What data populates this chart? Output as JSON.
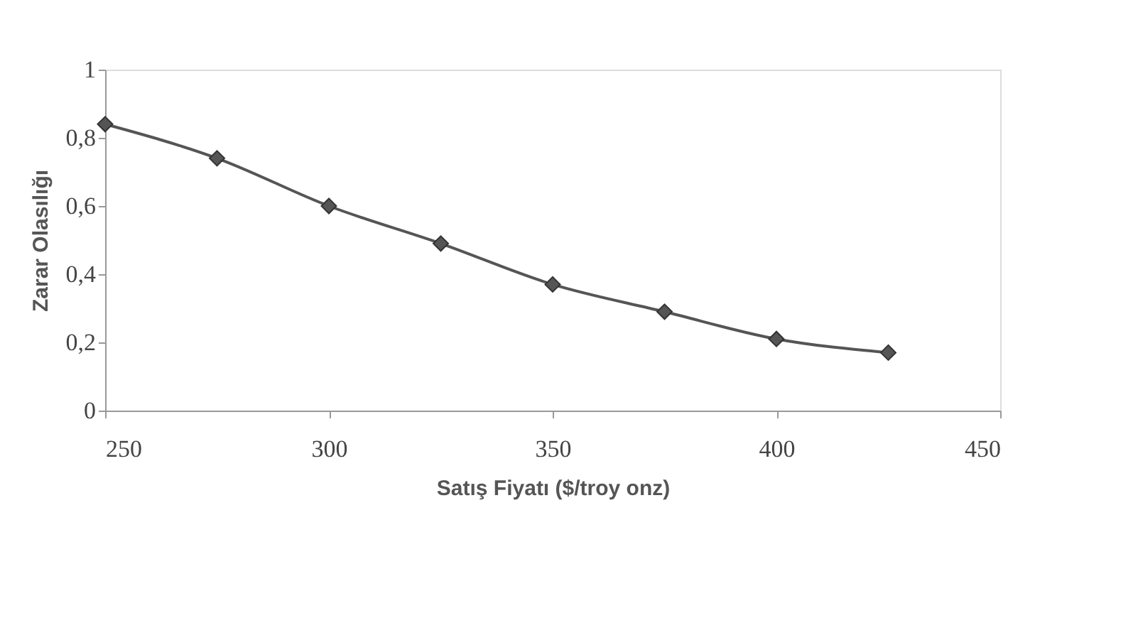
{
  "chart_data": {
    "type": "line",
    "xlabel": "Satış Fiyatı ($/troy onz)",
    "ylabel": "Zarar Olasılığı",
    "x": [
      250,
      275,
      300,
      325,
      350,
      375,
      400,
      425
    ],
    "series": [
      {
        "color": "#555555",
        "values": [
          0.84,
          0.74,
          0.6,
          0.49,
          0.37,
          0.29,
          0.21,
          0.17
        ]
      }
    ],
    "xlim": [
      250,
      450
    ],
    "xticks": [
      250,
      300,
      350,
      400,
      450
    ],
    "ylim": [
      0,
      1
    ],
    "yticks": [
      {
        "value": 0,
        "label": "0"
      },
      {
        "value": 0.2,
        "label": "0,2"
      },
      {
        "value": 0.4,
        "label": "0,4"
      },
      {
        "value": 0.6,
        "label": "0,6"
      },
      {
        "value": 0.8,
        "label": "0,8"
      },
      {
        "value": 1,
        "label": "1"
      }
    ],
    "grid": false,
    "marker": "diamond",
    "line_style": "solid"
  }
}
